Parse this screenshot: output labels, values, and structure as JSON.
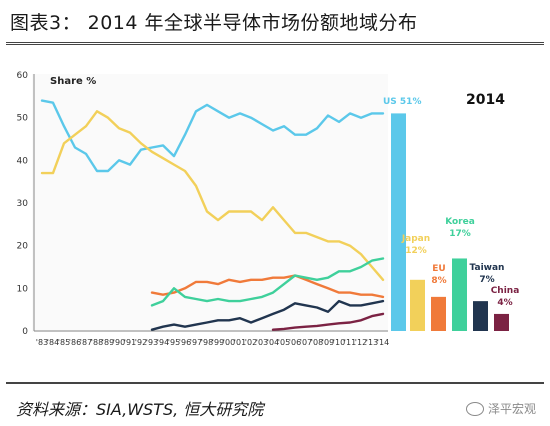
{
  "header": {
    "title": "图表3：  2014 年全球半导体市场份额地域分布"
  },
  "footer": {
    "source": "资料来源：SIA,WSTS, 恒大研究院",
    "watermark": "泽平宏观"
  },
  "chart_data": [
    {
      "type": "line",
      "ylabel": "Share %",
      "ylim": [
        0,
        60
      ],
      "yticks": [
        0,
        10,
        20,
        30,
        40,
        50,
        60
      ],
      "x": [
        "'83",
        "'84",
        "'85",
        "'86",
        "'87",
        "'88",
        "'89",
        "'90",
        "'91",
        "'92",
        "'93",
        "'94",
        "'95",
        "'96",
        "'97",
        "'98",
        "'99",
        "'00",
        "'01",
        "'02",
        "'03",
        "'04",
        "'05",
        "'06",
        "'07",
        "'08",
        "'09",
        "'10",
        "'11",
        "'12",
        "'13",
        "'14"
      ],
      "series": [
        {
          "name": "US",
          "color": "#5bc8ea",
          "values": [
            54,
            53.5,
            48,
            43,
            41.5,
            37.5,
            37.5,
            40,
            39,
            42.5,
            43,
            43.5,
            41,
            46,
            51.5,
            53,
            51.5,
            50,
            51,
            50,
            48.5,
            47,
            48,
            46,
            46,
            47.5,
            50.5,
            49,
            51,
            50,
            51,
            51
          ]
        },
        {
          "name": "Japan",
          "color": "#f2d05a",
          "values": [
            37,
            37,
            44,
            46,
            48,
            51.5,
            50,
            47.5,
            46.5,
            44,
            42,
            40.5,
            39,
            37.5,
            34,
            28,
            26,
            28,
            28,
            28,
            26,
            29,
            26,
            23,
            23,
            22,
            21,
            21,
            20,
            18,
            15,
            12
          ]
        },
        {
          "name": "EU",
          "color": "#f07a3a",
          "values": [
            null,
            null,
            null,
            null,
            null,
            null,
            null,
            null,
            null,
            null,
            9,
            8.5,
            9,
            10,
            11.5,
            11.5,
            11,
            12,
            11.5,
            12,
            12,
            12.5,
            12.5,
            13,
            12,
            11,
            10,
            9,
            9,
            8.5,
            8.5,
            8
          ]
        },
        {
          "name": "Korea",
          "color": "#3fd09b",
          "values": [
            null,
            null,
            null,
            null,
            null,
            null,
            null,
            null,
            null,
            null,
            6,
            7,
            10,
            8,
            7.5,
            7,
            7.5,
            7,
            7,
            7.5,
            8,
            9,
            11,
            13,
            12.5,
            12,
            12.5,
            14,
            14,
            15,
            16.5,
            17
          ]
        },
        {
          "name": "Taiwan",
          "color": "#21354f",
          "values": [
            null,
            null,
            null,
            null,
            null,
            null,
            null,
            null,
            null,
            null,
            0.3,
            1,
            1.5,
            1,
            1.5,
            2,
            2.5,
            2.5,
            3,
            2,
            3,
            4,
            5,
            6.5,
            6,
            5.5,
            4.5,
            7,
            6,
            6,
            6.5,
            7
          ]
        },
        {
          "name": "China",
          "color": "#7b2243",
          "values": [
            null,
            null,
            null,
            null,
            null,
            null,
            null,
            null,
            null,
            null,
            null,
            null,
            null,
            null,
            null,
            null,
            null,
            null,
            null,
            null,
            null,
            0.3,
            0.5,
            0.8,
            1,
            1.2,
            1.5,
            1.8,
            2,
            2.5,
            3.5,
            4
          ]
        }
      ]
    },
    {
      "type": "bar",
      "title": "2014",
      "categories": [
        "US",
        "Japan",
        "EU",
        "Korea",
        "Taiwan",
        "China"
      ],
      "values": [
        51,
        12,
        8,
        17,
        7,
        4
      ],
      "labels": [
        "US 51%",
        "Japan 12%",
        "EU 8%",
        "Korea 17%",
        "Taiwan 7%",
        "China 4%"
      ],
      "colors": [
        "#5bc8ea",
        "#f2d05a",
        "#f07a3a",
        "#3fd09b",
        "#21354f",
        "#7b2243"
      ]
    }
  ]
}
